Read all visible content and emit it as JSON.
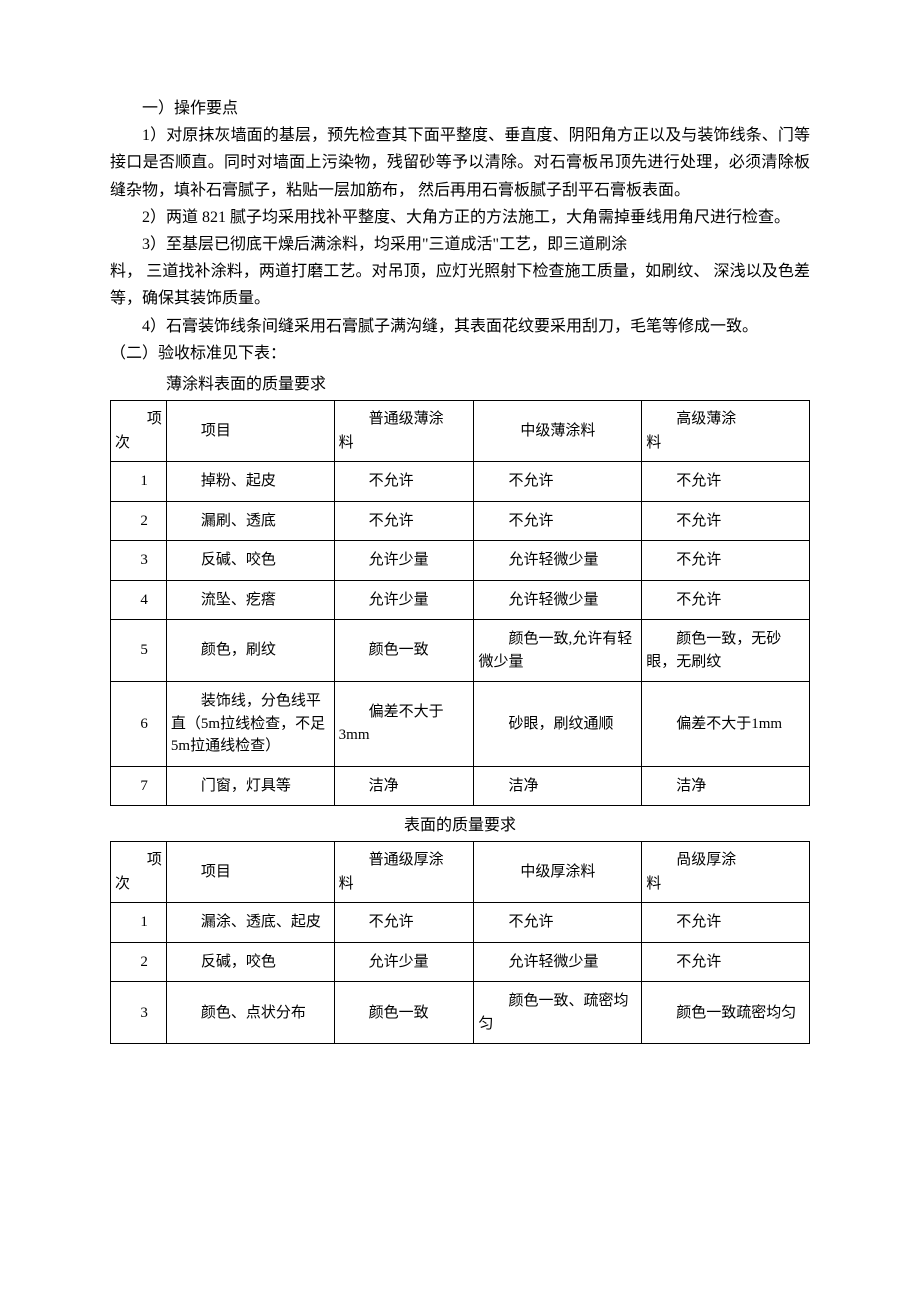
{
  "text": {
    "h1": "一）操作要点",
    "p1": "1）对原抹灰墙面的基层，预先检查其下面平整度、垂直度、阴阳角方正以及与装饰线条、门等接口是否顺直。同时对墙面上污染物，残留砂等予以清除。对石膏板吊顶先进行处理，必须清除板缝杂物，填补石膏腻子，粘贴一层加筋布，  然后再用石膏板腻子刮平石膏板表面。",
    "p2": "2）两道 821 腻子均采用找补平整度、大角方正的方法施工，大角需掉垂线用角尺进行检查。",
    "p3a": "3）至基层已彻底干燥后满涂料，均采用\"三道成活\"工艺，即三道刷涂",
    "p3b": "料，  三道找补涂料，两道打磨工艺。对吊顶，应灯光照射下检查施工质量，如刷纹、 深浅以及色差等，确保其装饰质量。",
    "p4": "4）石膏装饰线条间缝采用石膏腻子满沟缝，其表面花纹要采用刮刀，毛笔等修成一致。",
    "h2": "（二）验收标准见下表：",
    "t1_title": "薄涂料表面的质量要求",
    "t2_title": "表面的质量要求"
  },
  "table1": {
    "headers": {
      "c0a": "项",
      "c0b": "次",
      "c1": "项目",
      "c2a": "普通级薄涂",
      "c2b": "料",
      "c3": "中级薄涂料",
      "c4a": "高级薄涂",
      "c4b": "料"
    },
    "rows": [
      {
        "n": "1",
        "item": "掉粉、起皮",
        "a": "不允许",
        "b": "不允许",
        "c": "不允许"
      },
      {
        "n": "2",
        "item": "漏刷、透底",
        "a": "不允许",
        "b": "不允许",
        "c": "不允许"
      },
      {
        "n": "3",
        "item": "反碱、咬色",
        "a": "允许少量",
        "b": "允许轻微少量",
        "c": "不允许"
      },
      {
        "n": "4",
        "item": "流坠、疙瘩",
        "a": "允许少量",
        "b": "允许轻微少量",
        "c": "不允许"
      },
      {
        "n": "5",
        "item": "颜色，刷纹",
        "a": "颜色一致",
        "b": "颜色一致,允许有轻微少量",
        "c": "颜色一致，无砂眼，无刷纹"
      },
      {
        "n": "6",
        "item": "装饰线，分色线平直（5m拉线检查，不足5m拉通线检查）",
        "a": "偏差不大于3mm",
        "b": "砂眼，刷纹通顺",
        "c": "偏差不大于1mm"
      },
      {
        "n": "7",
        "item": "门窗，灯具等",
        "a": "洁净",
        "b": "洁净",
        "c": "洁净"
      }
    ]
  },
  "table2": {
    "headers": {
      "c0a": "项",
      "c0b": "次",
      "c1": "项目",
      "c2a": "普通级厚涂",
      "c2b": "料",
      "c3": "中级厚涂料",
      "c4a": "咼级厚涂",
      "c4b": "料"
    },
    "rows": [
      {
        "n": "1",
        "item": "漏涂、透底、起皮",
        "a": "不允许",
        "b": "不允许",
        "c": "不允许"
      },
      {
        "n": "2",
        "item": "反碱，咬色",
        "a": "允许少量",
        "b": "允许轻微少量",
        "c": "不允许"
      },
      {
        "n": "3",
        "item": "颜色、点状分布",
        "a": "颜色一致",
        "b": "颜色一致、疏密均 匀",
        "c": "颜色一致疏密均匀"
      }
    ]
  }
}
